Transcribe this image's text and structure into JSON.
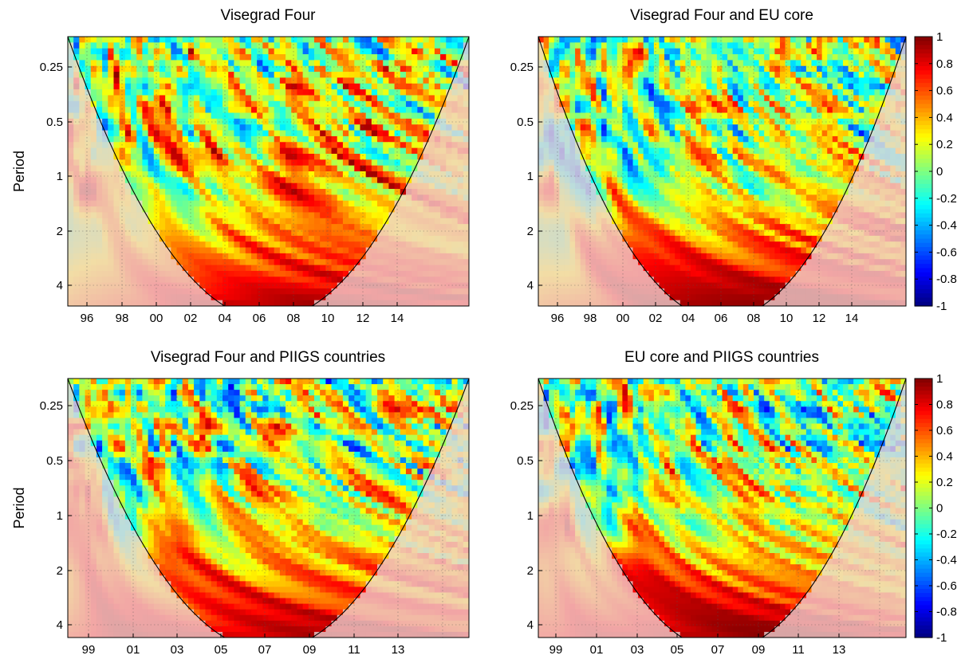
{
  "figure": {
    "ylabel": "Period",
    "colorbar": {
      "ticks": [
        1,
        0.8,
        0.6,
        0.4,
        0.2,
        0,
        -0.2,
        -0.4,
        -0.6,
        -0.8,
        -1
      ],
      "labels": [
        "1",
        "0.8",
        "0.6",
        "0.4",
        "0.2",
        "0",
        "-0.2",
        "-0.4",
        "-0.6",
        "-0.8",
        "-1"
      ],
      "colormap": "jet",
      "range": [
        -1,
        1
      ]
    }
  },
  "chart_data": [
    {
      "type": "heatmap",
      "title": "Visegrad Four",
      "ylabel": "Period",
      "xticks": [
        "96",
        "98",
        "00",
        "02",
        "04",
        "06",
        "08",
        "10",
        "12",
        "14"
      ],
      "yticks": [
        "0.25",
        "0.5",
        "1",
        "2",
        "4"
      ],
      "y_scale": "log2",
      "ylim": [
        0.18,
        5.2
      ],
      "xlim": [
        1995.0,
        2015.0
      ],
      "zlim": [
        -1,
        1
      ],
      "grid": true,
      "cone_of_influence": true,
      "note_values": "wavelet coherence, estimated visual pattern",
      "low_period_mean": 0.15,
      "high_period_peak": 0.95,
      "peak_center_year": 2008.0
    },
    {
      "type": "heatmap",
      "title": "Visegrad Four and EU core",
      "ylabel": "",
      "xticks": [
        "96",
        "98",
        "00",
        "02",
        "04",
        "06",
        "08",
        "10",
        "12",
        "14"
      ],
      "yticks": [
        "0.25",
        "0.5",
        "1",
        "2",
        "4"
      ],
      "y_scale": "log2",
      "ylim": [
        0.18,
        5.2
      ],
      "xlim": [
        1995.0,
        2015.0
      ],
      "zlim": [
        -1,
        1
      ],
      "grid": true,
      "cone_of_influence": true,
      "low_period_mean": 0.05,
      "high_period_peak": 0.95,
      "peak_center_year": 2008.0
    },
    {
      "type": "heatmap",
      "title": "Visegrad Four and PIIGS countries",
      "ylabel": "Period",
      "xticks": [
        "99",
        "01",
        "03",
        "05",
        "07",
        "09",
        "11",
        "13"
      ],
      "yticks": [
        "0.25",
        "0.5",
        "1",
        "2",
        "4"
      ],
      "y_scale": "log2",
      "ylim": [
        0.18,
        5.2
      ],
      "xlim": [
        1998.0,
        2015.0
      ],
      "zlim": [
        -1,
        1
      ],
      "grid": true,
      "cone_of_influence": true,
      "low_period_mean": 0.05,
      "high_period_peak": 0.9,
      "peak_center_year": 2008.0
    },
    {
      "type": "heatmap",
      "title": "EU core and PIIGS countries",
      "ylabel": "",
      "xticks": [
        "99",
        "01",
        "03",
        "05",
        "07",
        "09",
        "11",
        "13"
      ],
      "yticks": [
        "0.25",
        "0.5",
        "1",
        "2",
        "4"
      ],
      "y_scale": "log2",
      "ylim": [
        0.18,
        5.2
      ],
      "xlim": [
        1998.0,
        2015.0
      ],
      "zlim": [
        -1,
        1
      ],
      "grid": true,
      "cone_of_influence": true,
      "low_period_mean": 0.05,
      "high_period_peak": 0.92,
      "peak_center_year": 2008.0
    }
  ]
}
